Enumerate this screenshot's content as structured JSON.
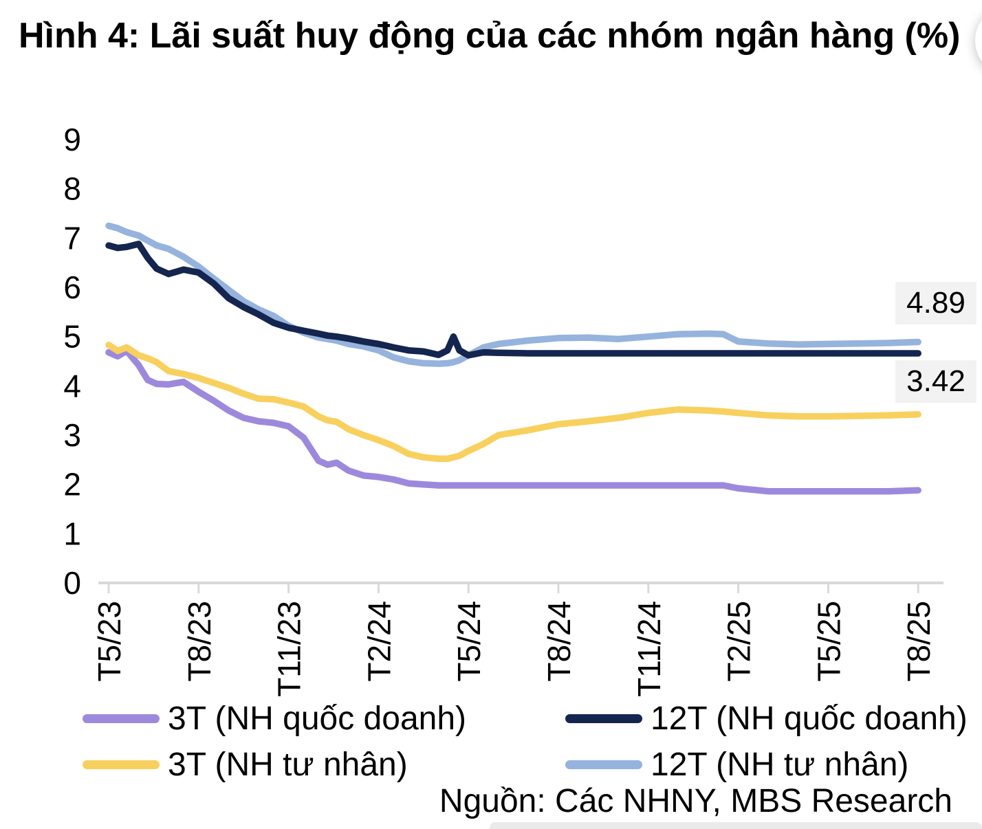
{
  "page": {
    "title": "Hình 4: Lãi suất huy động của các nhóm ngân hàng (%)",
    "source": "Nguồn: Các NHNY, MBS Research"
  },
  "chart_data": {
    "type": "line",
    "title": "Hình 4: Lãi suất huy động của các nhóm ngân hàng (%)",
    "ylabel": "",
    "xlabel": "",
    "ylim": [
      0,
      9
    ],
    "grid": false,
    "axis_color": "#d9d9d9",
    "y_ticks": [
      0,
      1,
      2,
      3,
      4,
      5,
      6,
      7,
      8,
      9
    ],
    "x_tick_labels": [
      "T5/23",
      "T8/23",
      "T11/23",
      "T2/24",
      "T5/24",
      "T8/24",
      "T11/24",
      "T2/25",
      "T5/25",
      "T8/25"
    ],
    "x_tick_months": [
      0,
      3,
      6,
      9,
      12,
      15,
      18,
      21,
      24,
      27
    ],
    "x_months": [
      0,
      0.3,
      0.6,
      1,
      1.3,
      1.6,
      2,
      2.5,
      3,
      3.5,
      4,
      4.5,
      5,
      5.5,
      6,
      6.5,
      7,
      7.3,
      7.6,
      8,
      8.5,
      9,
      9.5,
      10,
      10.5,
      11,
      11.3,
      11.5,
      11.7,
      12,
      12.5,
      13,
      14,
      15,
      16,
      17,
      18,
      19,
      20,
      20.5,
      21,
      22,
      23,
      24,
      25,
      26,
      27
    ],
    "series": [
      {
        "id": "3t-quoc-doanh",
        "name": "3T (NH quốc doanh)",
        "color": "#9d89dc",
        "values": [
          4.68,
          4.6,
          4.71,
          4.42,
          4.12,
          4.04,
          4.03,
          4.08,
          3.88,
          3.7,
          3.5,
          3.35,
          3.28,
          3.25,
          3.18,
          2.95,
          2.48,
          2.4,
          2.44,
          2.28,
          2.18,
          2.15,
          2.1,
          2.02,
          2.0,
          1.98,
          1.98,
          1.98,
          1.98,
          1.98,
          1.98,
          1.98,
          1.98,
          1.98,
          1.98,
          1.98,
          1.98,
          1.98,
          1.98,
          1.98,
          1.92,
          1.86,
          1.86,
          1.86,
          1.86,
          1.86,
          1.88
        ]
      },
      {
        "id": "3t-tu-nhan",
        "name": "3T (NH tư nhân)",
        "color": "#f8d05e",
        "values": [
          4.83,
          4.71,
          4.78,
          4.62,
          4.56,
          4.48,
          4.3,
          4.24,
          4.16,
          4.06,
          3.96,
          3.84,
          3.74,
          3.73,
          3.66,
          3.58,
          3.38,
          3.3,
          3.27,
          3.12,
          3.0,
          2.9,
          2.78,
          2.62,
          2.55,
          2.52,
          2.52,
          2.55,
          2.58,
          2.68,
          2.82,
          3.0,
          3.1,
          3.22,
          3.28,
          3.35,
          3.45,
          3.52,
          3.5,
          3.48,
          3.45,
          3.4,
          3.38,
          3.38,
          3.39,
          3.4,
          3.42
        ]
      },
      {
        "id": "12t-tu-nhan",
        "name": "12T (NH tư nhân)",
        "color": "#95b3dd",
        "values": [
          7.25,
          7.2,
          7.12,
          7.05,
          6.95,
          6.85,
          6.78,
          6.62,
          6.42,
          6.18,
          5.95,
          5.72,
          5.55,
          5.42,
          5.22,
          5.08,
          4.98,
          4.95,
          4.92,
          4.85,
          4.8,
          4.72,
          4.58,
          4.5,
          4.46,
          4.45,
          4.46,
          4.48,
          4.52,
          4.62,
          4.78,
          4.85,
          4.92,
          4.97,
          4.98,
          4.95,
          5.0,
          5.05,
          5.06,
          5.05,
          4.9,
          4.86,
          4.84,
          4.85,
          4.86,
          4.87,
          4.89
        ]
      },
      {
        "id": "12t-quoc-doanh",
        "name": "12T (NH quốc doanh)",
        "color": "#14254f",
        "values": [
          6.85,
          6.8,
          6.82,
          6.88,
          6.6,
          6.38,
          6.27,
          6.36,
          6.3,
          6.08,
          5.78,
          5.6,
          5.45,
          5.28,
          5.18,
          5.12,
          5.06,
          5.02,
          5.0,
          4.96,
          4.9,
          4.85,
          4.78,
          4.72,
          4.7,
          4.63,
          4.72,
          5.0,
          4.72,
          4.62,
          4.68,
          4.67,
          4.66,
          4.66,
          4.66,
          4.66,
          4.66,
          4.66,
          4.66,
          4.66,
          4.66,
          4.66,
          4.66,
          4.66,
          4.66,
          4.66,
          4.66
        ]
      }
    ],
    "end_labels": [
      {
        "text": "4.89",
        "series": "12T (NH tư nhân)",
        "box_color": "#f2f2f2"
      },
      {
        "text": "3.42",
        "series": "3T (NH tư nhân)",
        "box_color": "#f2f2f2"
      }
    ],
    "legend_position": "bottom"
  },
  "legend": {
    "items": [
      {
        "label": "3T (NH quốc doanh)",
        "color": "#9d89dc"
      },
      {
        "label": "3T (NH tư nhân)",
        "color": "#f8d05e"
      },
      {
        "label": "12T (NH quốc doanh)",
        "color": "#14254f"
      },
      {
        "label": "12T (NH tư nhân)",
        "color": "#95b3dd"
      }
    ]
  }
}
